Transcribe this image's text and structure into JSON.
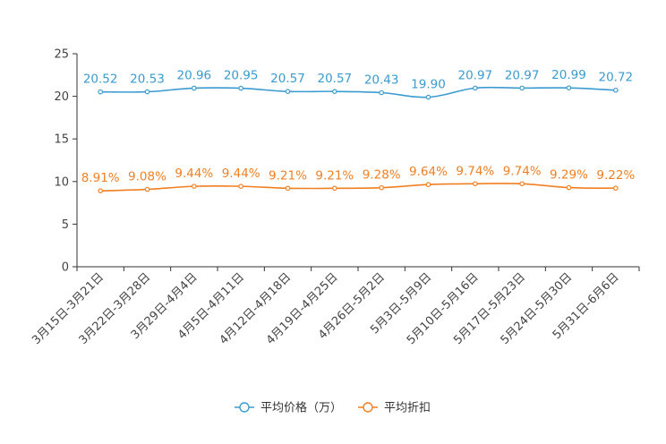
{
  "chart_data": {
    "type": "line",
    "categories": [
      "3月15日-3月21日",
      "3月22日-3月28日",
      "3月29日-4月4日",
      "4月5日-4月11日",
      "4月12日-4月18日",
      "4月19日-4月25日",
      "4月26日-5月2日",
      "5月3日-5月9日",
      "5月10日-5月16日",
      "5月17日-5月23日",
      "5月24日-5月30日",
      "5月31日-6月6日"
    ],
    "series": [
      {
        "name": "平均价格（万）",
        "color": "#3a9bd0",
        "values": [
          20.52,
          20.53,
          20.96,
          20.95,
          20.57,
          20.57,
          20.43,
          19.9,
          20.97,
          20.97,
          20.99,
          20.72
        ],
        "labels": [
          "20.52",
          "20.53",
          "20.96",
          "20.95",
          "20.57",
          "20.57",
          "20.43",
          "19.90",
          "20.97",
          "20.97",
          "20.99",
          "20.72"
        ]
      },
      {
        "name": "平均折扣",
        "color": "#f07f22",
        "values": [
          8.91,
          9.08,
          9.44,
          9.44,
          9.21,
          9.21,
          9.28,
          9.64,
          9.74,
          9.74,
          9.29,
          9.22
        ],
        "labels": [
          "8.91%",
          "9.08%",
          "9.44%",
          "9.44%",
          "9.21%",
          "9.21%",
          "9.28%",
          "9.64%",
          "9.74%",
          "9.74%",
          "9.29%",
          "9.22%"
        ]
      }
    ],
    "ylim": [
      0,
      25
    ],
    "yticks": [
      "0",
      "5",
      "10",
      "15",
      "20",
      "25"
    ],
    "xlabel": "",
    "ylabel": "",
    "legend_position": "bottom-center",
    "grid": false
  }
}
